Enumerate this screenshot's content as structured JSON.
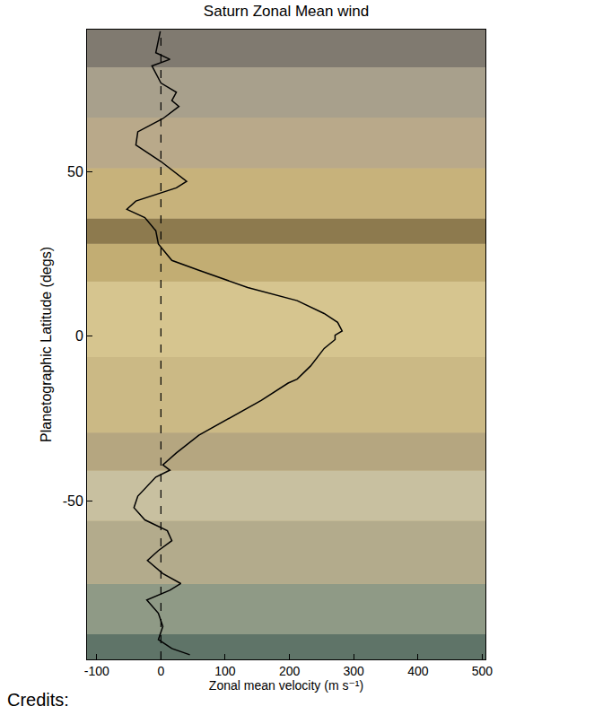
{
  "chart_data": {
    "type": "line",
    "title": "Saturn Zonal Mean wind",
    "x_label": "Zonal mean velocity (m s⁻¹)",
    "y_label": "Planetographic Latitude (degs)",
    "annotations": [
      "Credits:"
    ],
    "xlim": [
      -115,
      505
    ],
    "xticks": [
      -100,
      0,
      100,
      200,
      300,
      400,
      500
    ],
    "ylim": [
      -98,
      93
    ],
    "yticks": [
      -50,
      0,
      50
    ],
    "vline": 0,
    "grid": false,
    "color": "#000000",
    "line_style": "solid",
    "y": [
      92.5,
      86,
      84,
      82,
      76.8,
      74,
      71.5,
      69.7,
      66,
      62,
      58,
      53,
      47,
      45,
      41,
      38.5,
      36,
      32,
      28,
      23,
      20,
      14.8,
      10.8,
      6.9,
      4.2,
      1.6,
      0.3,
      -1,
      -3.7,
      -9,
      -13,
      -14.2,
      -19.5,
      -24.8,
      -30,
      -35.4,
      -39,
      -40.6,
      -42.7,
      -48.5,
      -52,
      -55.7,
      -59,
      -62,
      -65,
      -68,
      -72,
      -75,
      -77,
      -80,
      -84,
      -88,
      -92,
      -94.7,
      -96.6
    ],
    "x": [
      -1,
      -8,
      14,
      -14,
      0,
      24,
      17,
      28,
      3,
      -36,
      -39,
      0,
      40,
      24,
      -39,
      -53,
      -25,
      -8,
      -4,
      17,
      59,
      135,
      212,
      254,
      275,
      282,
      271,
      271,
      254,
      233,
      212,
      198,
      156,
      107,
      59,
      24,
      3,
      14,
      -8,
      -36,
      -42,
      -25,
      10,
      17,
      -4,
      -21,
      3,
      31,
      14,
      -22,
      -4,
      3,
      -4,
      17,
      45
    ]
  }
}
